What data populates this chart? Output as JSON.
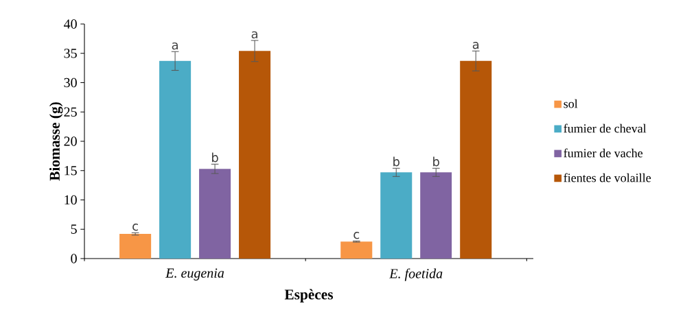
{
  "chart_data": {
    "type": "bar",
    "xlabel": "Espèces",
    "ylabel": "Biomasse (g)",
    "categories": [
      "E. eugenia",
      "E. foetida"
    ],
    "series": [
      {
        "name": "sol",
        "color": "#f79646",
        "values": [
          4.2,
          2.9
        ],
        "errors": [
          0.2,
          0.1
        ],
        "value_labels": [
          "c",
          "c"
        ]
      },
      {
        "name": "fumier de cheval",
        "color": "#4bacc6",
        "values": [
          33.7,
          14.7
        ],
        "errors": [
          1.6,
          0.7
        ],
        "value_labels": [
          "a",
          "b"
        ]
      },
      {
        "name": "fumier de vache",
        "color": "#8064a2",
        "values": [
          15.3,
          14.7
        ],
        "errors": [
          0.8,
          0.7
        ],
        "value_labels": [
          "b",
          "b"
        ]
      },
      {
        "name": "fientes de volaille",
        "color": "#b65708",
        "values": [
          35.4,
          33.7
        ],
        "errors": [
          1.8,
          1.7
        ],
        "value_labels": [
          "a",
          "a"
        ]
      }
    ],
    "ylim": [
      0,
      40
    ],
    "yticks": [
      0,
      5,
      10,
      15,
      20,
      25,
      30,
      35,
      40
    ],
    "grid": false,
    "legend": "right"
  }
}
